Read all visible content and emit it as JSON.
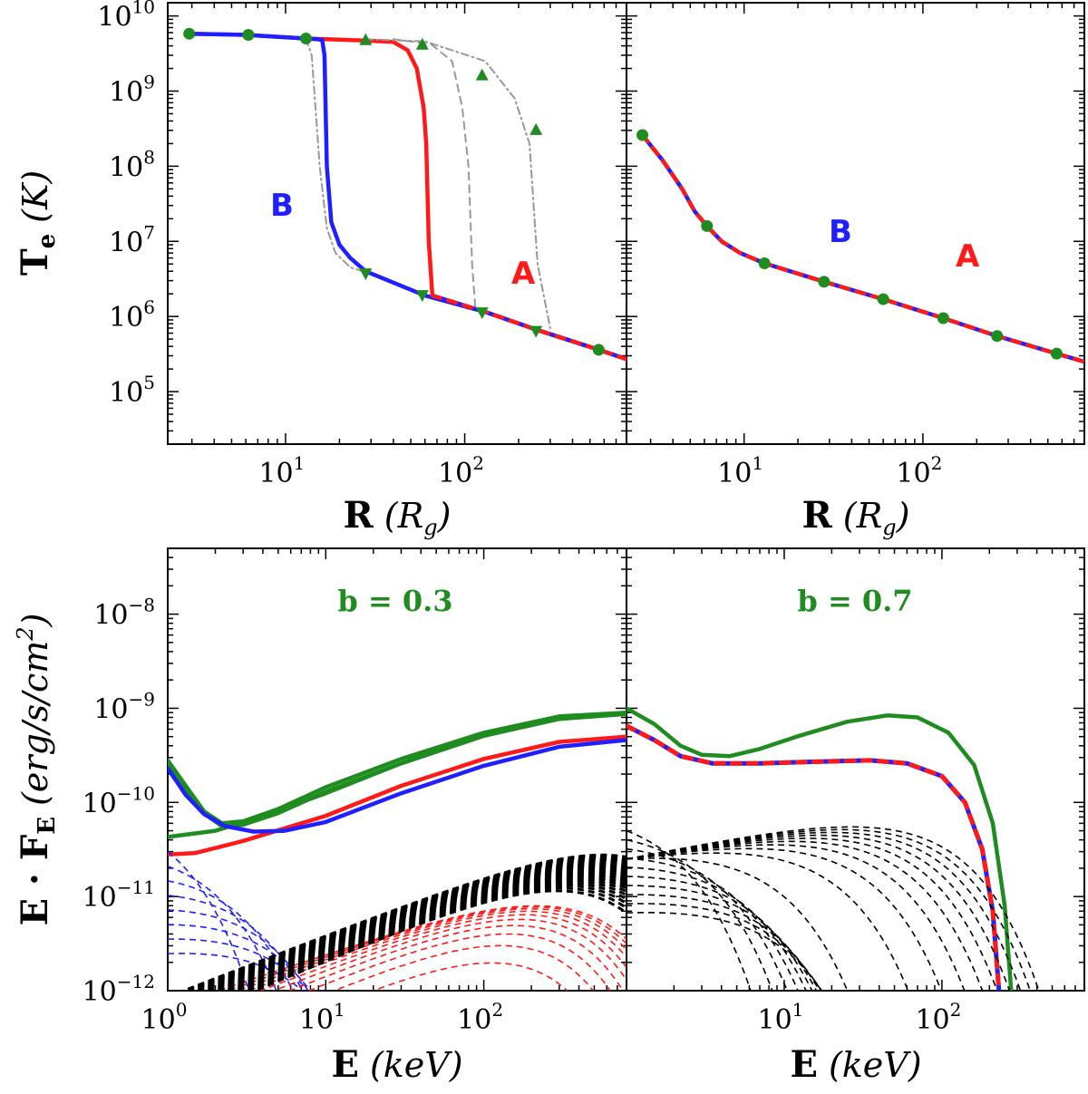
{
  "colors": {
    "blue": "#1f1fff",
    "red": "#ff1a1a",
    "green": "#1e8c1e",
    "gray": "#999999",
    "black": "#000000"
  },
  "labels": {
    "top_ylabel_main": "T",
    "top_ylabel_sub": "e",
    "top_ylabel_unit": "(K)",
    "top_xlabel_main": "R",
    "top_xlabel_unit": "(R",
    "top_xlabel_unit_sub": "g",
    "top_xlabel_close": ")",
    "bottom_ylabel_main": "E · F",
    "bottom_ylabel_sub": "E",
    "bottom_ylabel_unit": "(erg/s/cm",
    "bottom_ylabel_unit_sup": "2",
    "bottom_ylabel_close": ")",
    "bottom_xlabel_main": "E",
    "bottom_xlabel_unit": "(keV)",
    "curve_b": "B",
    "curve_a": "A",
    "b_left": "b = 0.3",
    "b_right": "b = 0.7"
  },
  "chart_data": [
    {
      "id": "top-left",
      "type": "line",
      "xscale": "log",
      "yscale": "log",
      "xlim": [
        2.2,
        800
      ],
      "ylim": [
        20000,
        15000000000
      ],
      "xticks": [
        {
          "base": "10",
          "exp": "1",
          "value": 10
        },
        {
          "base": "10",
          "exp": "2",
          "value": 100
        }
      ],
      "yticks": [
        {
          "base": "10",
          "exp": "5",
          "value": 100000
        },
        {
          "base": "10",
          "exp": "6",
          "value": 1000000
        },
        {
          "base": "10",
          "exp": "7",
          "value": 10000000
        },
        {
          "base": "10",
          "exp": "8",
          "value": 100000000
        },
        {
          "base": "10",
          "exp": "9",
          "value": 1000000000
        },
        {
          "base": "10",
          "exp": "10",
          "value": 10000000000
        }
      ],
      "xlabel": "R (Rg)",
      "ylabel": "Te (K)",
      "series": [
        {
          "name": "A",
          "style": "solid-red",
          "points": [
            [
              2.9,
              5800000000
            ],
            [
              6,
              5600000000
            ],
            [
              13,
              5000000000
            ],
            [
              28,
              4700000000
            ],
            [
              40,
              4500000000
            ],
            [
              48,
              3500000000
            ],
            [
              54,
              2000000000
            ],
            [
              59,
              600000000
            ],
            [
              61,
              200000000
            ],
            [
              63,
              10000000
            ],
            [
              66,
              1900000
            ]
          ]
        },
        {
          "name": "B",
          "style": "solid-blue",
          "points": [
            [
              2.9,
              5800000000
            ],
            [
              6,
              5600000000
            ],
            [
              13,
              5000000000
            ],
            [
              15,
              4900000000
            ],
            [
              16,
              4800000000
            ],
            [
              16.5,
              3000000000
            ],
            [
              17,
              100000000
            ],
            [
              18,
              18000000
            ],
            [
              20,
              9000000
            ],
            [
              23,
              6000000
            ],
            [
              28,
              4000000
            ],
            [
              60,
              1900000
            ],
            [
              130,
              1150000
            ],
            [
              260,
              650000
            ],
            [
              560,
              360000
            ],
            [
              800,
              270000
            ]
          ]
        },
        {
          "name": "A-dashed-lower",
          "style": "dashed-bluered",
          "points": [
            [
              66,
              1900000
            ],
            [
              130,
              1150000
            ],
            [
              260,
              650000
            ],
            [
              560,
              360000
            ],
            [
              800,
              270000
            ]
          ]
        },
        {
          "name": "gray-dashed",
          "style": "dashed-gray",
          "points": [
            [
              40,
              4900000000
            ],
            [
              65,
              4200000000
            ],
            [
              85,
              2500000000
            ],
            [
              97,
              600000000
            ],
            [
              105,
              100000000
            ],
            [
              110,
              5000000
            ],
            [
              115,
              1200000
            ]
          ]
        },
        {
          "name": "gray-dashdot-outer",
          "style": "dashdot-gray",
          "points": [
            [
              28,
              4900000000
            ],
            [
              60,
              4600000000
            ],
            [
              130,
              2500000000
            ],
            [
              190,
              800000000
            ],
            [
              230,
              200000000
            ],
            [
              255,
              5000000
            ],
            [
              300,
              700000
            ]
          ]
        },
        {
          "name": "gray-dashdot-inner",
          "style": "dashdot-gray",
          "points": [
            [
              13,
              5000000000
            ],
            [
              14,
              3000000000
            ],
            [
              15.5,
              100000000
            ],
            [
              17,
              15000000
            ],
            [
              19,
              7000000
            ],
            [
              23,
              4500000
            ],
            [
              28,
              3900000
            ]
          ]
        }
      ],
      "markers_circle": [
        [
          2.9,
          5800000000
        ],
        [
          6.2,
          5600000000
        ],
        [
          13,
          5000000000
        ],
        [
          560,
          360000
        ]
      ],
      "markers_up": [
        [
          28,
          4700000000
        ],
        [
          58,
          4100000000
        ],
        [
          125,
          1600000000
        ],
        [
          250,
          300000000
        ]
      ],
      "markers_down": [
        [
          28,
          3800000
        ],
        [
          58,
          1950000
        ],
        [
          125,
          1150000
        ],
        [
          250,
          650000
        ]
      ],
      "annotations": [
        {
          "text": "B",
          "x": 13,
          "y": 20000000
        },
        {
          "text": "A",
          "x": 230,
          "y": 2500000
        }
      ]
    },
    {
      "id": "top-right",
      "type": "line",
      "xscale": "log",
      "yscale": "log",
      "xlim": [
        2.2,
        800
      ],
      "ylim": [
        20000,
        15000000000
      ],
      "xticks": [
        {
          "base": "10",
          "exp": "1",
          "value": 10
        },
        {
          "base": "10",
          "exp": "2",
          "value": 100
        }
      ],
      "series": [
        {
          "name": "A=B",
          "style": "dashed-bluered",
          "points": [
            [
              2.7,
              260000000
            ],
            [
              3.5,
              120000000
            ],
            [
              4.5,
              50000000
            ],
            [
              5.3,
              25000000
            ],
            [
              6.2,
              16000000
            ],
            [
              7.5,
              10000000
            ],
            [
              9.5,
              7000000
            ],
            [
              13,
              5100000
            ],
            [
              28,
              2900000
            ],
            [
              60,
              1700000
            ],
            [
              130,
              950000
            ],
            [
              260,
              550000
            ],
            [
              560,
              320000
            ],
            [
              800,
              250000
            ]
          ]
        }
      ],
      "markers_circle": [
        [
          2.7,
          260000000
        ],
        [
          6.2,
          16000000
        ],
        [
          13,
          5100000
        ],
        [
          28,
          2900000
        ],
        [
          60,
          1700000
        ],
        [
          130,
          950000
        ],
        [
          260,
          550000
        ],
        [
          560,
          320000
        ]
      ],
      "annotations": [
        {
          "text": "B",
          "x": 27,
          "y": 55000000
        },
        {
          "text": "A",
          "x": 170,
          "y": 9000000
        }
      ]
    },
    {
      "id": "bottom-left",
      "type": "line",
      "xscale": "log",
      "yscale": "log",
      "xlim": [
        1,
        800
      ],
      "ylim": [
        1e-12,
        5e-08
      ],
      "xticks": [
        {
          "base": "10",
          "exp": "0",
          "value": 1
        },
        {
          "base": "10",
          "exp": "1",
          "value": 10
        },
        {
          "base": "10",
          "exp": "2",
          "value": 100
        }
      ],
      "yticks": [
        {
          "base": "10",
          "exp": "−12",
          "value": 1e-12
        },
        {
          "base": "10",
          "exp": "−11",
          "value": 1e-11
        },
        {
          "base": "10",
          "exp": "−10",
          "value": 1e-10
        },
        {
          "base": "10",
          "exp": "−9",
          "value": 1e-09
        },
        {
          "base": "10",
          "exp": "−8",
          "value": 1e-08
        }
      ],
      "xlabel": "E (keV)",
      "ylabel": "E·FE (erg/s/cm2)",
      "series": [
        {
          "name": "green-1",
          "style": "solid-green",
          "points": [
            [
              1,
              2.8e-10
            ],
            [
              1.3,
              1.5e-10
            ],
            [
              1.7,
              8e-11
            ],
            [
              2.2,
              6e-11
            ],
            [
              3,
              6.3e-11
            ],
            [
              5,
              8.5e-11
            ],
            [
              10,
              1.45e-10
            ],
            [
              30,
              2.9e-10
            ],
            [
              100,
              5.5e-10
            ],
            [
              300,
              8.2e-10
            ],
            [
              800,
              9e-10
            ]
          ]
        },
        {
          "name": "green-2",
          "style": "solid-green",
          "points": [
            [
              1,
              2.6e-10
            ],
            [
              1.3,
              1.4e-10
            ],
            [
              1.7,
              7.6e-11
            ],
            [
              2.2,
              5.6e-11
            ],
            [
              3,
              5.8e-11
            ],
            [
              5,
              7.7e-11
            ],
            [
              10,
              1.3e-10
            ],
            [
              30,
              2.6e-10
            ],
            [
              100,
              5.1e-10
            ],
            [
              300,
              7.7e-10
            ],
            [
              800,
              8.7e-10
            ]
          ]
        },
        {
          "name": "green-3",
          "style": "solid-green",
          "points": [
            [
              1,
              4.3e-11
            ],
            [
              2,
              5e-11
            ],
            [
              4,
              7.2e-11
            ],
            [
              10,
              1.25e-10
            ],
            [
              30,
              2.6e-10
            ],
            [
              100,
              5.1e-10
            ],
            [
              300,
              7.9e-10
            ],
            [
              800,
              8.9e-10
            ]
          ]
        },
        {
          "name": "red",
          "style": "solid-red",
          "points": [
            [
              1,
              2.8e-11
            ],
            [
              1.5,
              2.9e-11
            ],
            [
              3,
              3.9e-11
            ],
            [
              10,
              7.2e-11
            ],
            [
              30,
              1.5e-10
            ],
            [
              100,
              2.9e-10
            ],
            [
              300,
              4.4e-10
            ],
            [
              800,
              5e-10
            ]
          ]
        },
        {
          "name": "blue",
          "style": "solid-blue",
          "points": [
            [
              1,
              2.3e-10
            ],
            [
              1.3,
              1.2e-10
            ],
            [
              1.7,
              7.5e-11
            ],
            [
              2.3,
              5.6e-11
            ],
            [
              3.5,
              4.9e-11
            ],
            [
              5.5,
              5e-11
            ],
            [
              10,
              6.2e-11
            ],
            [
              30,
              1.25e-10
            ],
            [
              100,
              2.45e-10
            ],
            [
              300,
              3.9e-10
            ],
            [
              800,
              4.6e-10
            ]
          ]
        }
      ],
      "annotations": [
        {
          "text": "b = 0.3"
        }
      ]
    },
    {
      "id": "bottom-right",
      "type": "line",
      "xscale": "log",
      "yscale": "log",
      "xlim": [
        1,
        800
      ],
      "ylim": [
        1e-12,
        5e-08
      ],
      "xticks": [
        {
          "base": "10",
          "exp": "1",
          "value": 10
        },
        {
          "base": "10",
          "exp": "2",
          "value": 100
        }
      ],
      "xlabel": "E (keV)",
      "series": [
        {
          "name": "green",
          "style": "solid-green",
          "points": [
            [
              1,
              1e-09
            ],
            [
              1.5,
              6.8e-10
            ],
            [
              2.2,
              4e-10
            ],
            [
              3,
              3.2e-10
            ],
            [
              4.5,
              3.1e-10
            ],
            [
              7,
              3.7e-10
            ],
            [
              12,
              5e-10
            ],
            [
              25,
              7.2e-10
            ],
            [
              45,
              8.4e-10
            ],
            [
              70,
              8e-10
            ],
            [
              110,
              5.5e-10
            ],
            [
              160,
              2.5e-10
            ],
            [
              210,
              6e-11
            ],
            [
              250,
              8e-12
            ],
            [
              275,
              1e-12
            ]
          ]
        },
        {
          "name": "red-blue",
          "style": "dashed-bluered-thick",
          "points": [
            [
              1,
              6.5e-10
            ],
            [
              1.5,
              4.6e-10
            ],
            [
              2.2,
              3.1e-10
            ],
            [
              3.5,
              2.6e-10
            ],
            [
              7,
              2.6e-10
            ],
            [
              15,
              2.7e-10
            ],
            [
              35,
              2.8e-10
            ],
            [
              60,
              2.6e-10
            ],
            [
              100,
              1.9e-10
            ],
            [
              140,
              1e-10
            ],
            [
              180,
              3.2e-11
            ],
            [
              210,
              7e-12
            ],
            [
              230,
              1e-12
            ]
          ]
        }
      ],
      "annotations": [
        {
          "text": "b = 0.7"
        }
      ]
    }
  ]
}
